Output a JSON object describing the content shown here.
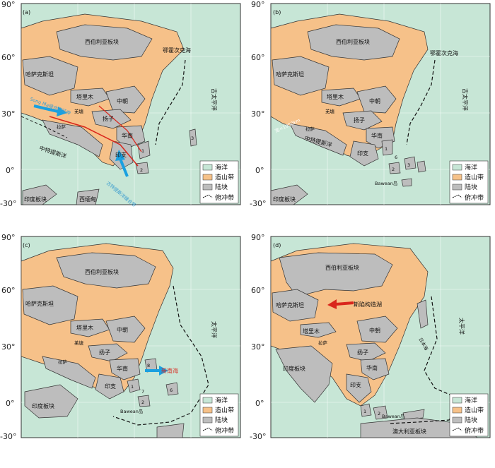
{
  "colors": {
    "ocean": "#c7e6d6",
    "orogen": "#f6c189",
    "block": "#bdbdbd",
    "border": "#333333",
    "blue_arrow": "#1aa0e0",
    "red_arrow": "#d9261c",
    "teal_text": "#3a9ccf"
  },
  "legend": {
    "ocean": "海洋",
    "orogen": "造山带",
    "block": "陆块",
    "subduction": "俯冲带"
  },
  "lat_ticks": [
    "90°",
    "60°",
    "30°",
    "0°",
    "-30°"
  ],
  "panels": [
    {
      "id": "a",
      "tag": "(a)",
      "labels": {
        "siberia": "西伯利亚板块",
        "okhotsk": "鄂霍次克海",
        "kazakh": "哈萨克斯坦",
        "tarim": "塔里木",
        "north_china": "中朝",
        "yangtze": "扬子",
        "south_china": "华南",
        "indochina": "印支",
        "qiangtang": "羌塘",
        "lhasa": "拉萨",
        "paleo_pacific": "古太平洋",
        "meso_tethys": "中特提斯洋",
        "india": "印度板块",
        "burma": "西缅甸",
        "song_ma": "Song Ma缝合带延伸",
        "paleo_tethys": "古特提斯洋缝合带",
        "num1": "1",
        "num2": "2",
        "num3": "3"
      }
    },
    {
      "id": "b",
      "tag": "(b)",
      "labels": {
        "siberia": "西伯利亚板块",
        "okhotsk": "鄂霍次克海",
        "kazakh": "哈萨克斯坦",
        "tarim": "塔里木",
        "north_china": "中朝",
        "yangtze": "扬子",
        "south_china": "华南",
        "indochina": "印支",
        "qiangtang": "羌塘",
        "lhasa": "拉萨",
        "paleo_pacific": "古太平洋",
        "meso_tethys": "中特提斯洋",
        "india": "印度板块",
        "bawean": "Bawean岛",
        "width_note": "宽<1000km",
        "num1": "1",
        "num2": "2",
        "num3": "3",
        "num6": "6"
      }
    },
    {
      "id": "c",
      "tag": "(c)",
      "labels": {
        "siberia": "西伯利亚板块",
        "kazakh": "哈萨克斯坦",
        "tarim": "塔里木",
        "north_china": "中朝",
        "yangtze": "扬子",
        "south_china": "华南",
        "indochina": "印支",
        "qiangtang": "羌塘",
        "lhasa": "拉萨",
        "pacific": "太平洋",
        "india": "印度板块",
        "bawean": "Bawean岛",
        "new_south_sea": "新南海",
        "num1": "1",
        "num2": "2",
        "num6": "6",
        "num7": "7",
        "num8": "8"
      }
    },
    {
      "id": "d",
      "tag": "(d)",
      "labels": {
        "siberia": "西伯利亚板块",
        "kazakh": "哈萨克斯坦",
        "tarim": "塔里木",
        "north_china": "中朝",
        "yangtze": "扬子",
        "south_china": "华南",
        "indochina": "印支",
        "lhasa": "拉萨",
        "pacific": "太平洋",
        "india": "印度板块",
        "bawean": "Bawean岛",
        "baikal": "斯陷构造湖",
        "japan_sea": "日本海",
        "australia": "澳大利亚板块",
        "num1": "1",
        "num2": "2"
      }
    }
  ]
}
